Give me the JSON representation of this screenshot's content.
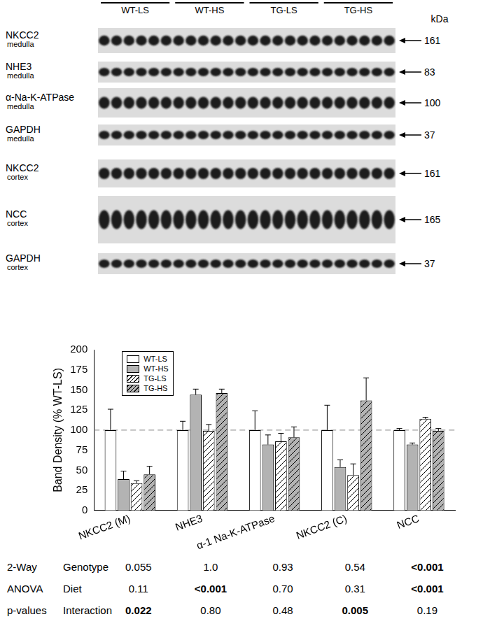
{
  "blot": {
    "lanes": [
      "WT-LS",
      "WT-HS",
      "TG-LS",
      "TG-HS"
    ],
    "unit": "kDa",
    "rows": [
      {
        "name": "NKCC2",
        "region": "medulla",
        "kda": 161
      },
      {
        "name": "NHE3",
        "region": "medulla",
        "kda": 83
      },
      {
        "name": "α-Na-K-ATPase",
        "region": "medulla",
        "kda": 100
      },
      {
        "name": "GAPDH",
        "region": "medulla",
        "kda": 37
      },
      {
        "name": "NKCC2",
        "region": "cortex",
        "kda": 161
      },
      {
        "name": "NCC",
        "region": "cortex",
        "kda": 165
      },
      {
        "name": "GAPDH",
        "region": "cortex",
        "kda": 37
      }
    ]
  },
  "chart_data": {
    "type": "bar",
    "y_label": "Band Density (% WT-LS)",
    "categories": [
      "NKCC2 (M)",
      "NHE3",
      "α-1 Na-K-ATPase",
      "NKCC2 (C)",
      "NCC"
    ],
    "series": [
      {
        "name": "WT-LS",
        "color": "#ffffff",
        "values": [
          100,
          100,
          100,
          100,
          100
        ],
        "errors": [
          26,
          11,
          24,
          31,
          2
        ]
      },
      {
        "name": "WT-HS",
        "color": "#b3b3b3",
        "values": [
          39,
          144,
          82,
          54,
          82
        ],
        "errors": [
          10,
          7,
          12,
          9,
          2
        ]
      },
      {
        "name": "TG-LS",
        "color": "#ffffff",
        "values": [
          34,
          99,
          86,
          44,
          114
        ],
        "errors": [
          3,
          8,
          10,
          14,
          2
        ]
      },
      {
        "name": "TG-HS",
        "color": "#b3b3b3",
        "values": [
          45,
          146,
          91,
          137,
          99
        ],
        "errors": [
          10,
          5,
          13,
          28,
          3
        ]
      }
    ],
    "ylim": [
      0,
      200
    ],
    "yticks": [
      0,
      25,
      50,
      75,
      100,
      125,
      150,
      175,
      200
    ],
    "grid": false,
    "legend": "upper left",
    "reference_line": 100
  },
  "stats": {
    "title": [
      "2-Way",
      "ANOVA",
      "p-values"
    ],
    "rows": [
      {
        "label": "Genotype",
        "values": [
          "0.055",
          "1.0",
          "0.93",
          "0.54",
          "<0.001"
        ]
      },
      {
        "label": "Diet",
        "values": [
          "0.11",
          "<0.001",
          "0.70",
          "0.31",
          "<0.001"
        ]
      },
      {
        "label": "Interaction",
        "values": [
          "0.022",
          "0.80",
          "0.48",
          "0.005",
          "0.19"
        ]
      }
    ]
  }
}
